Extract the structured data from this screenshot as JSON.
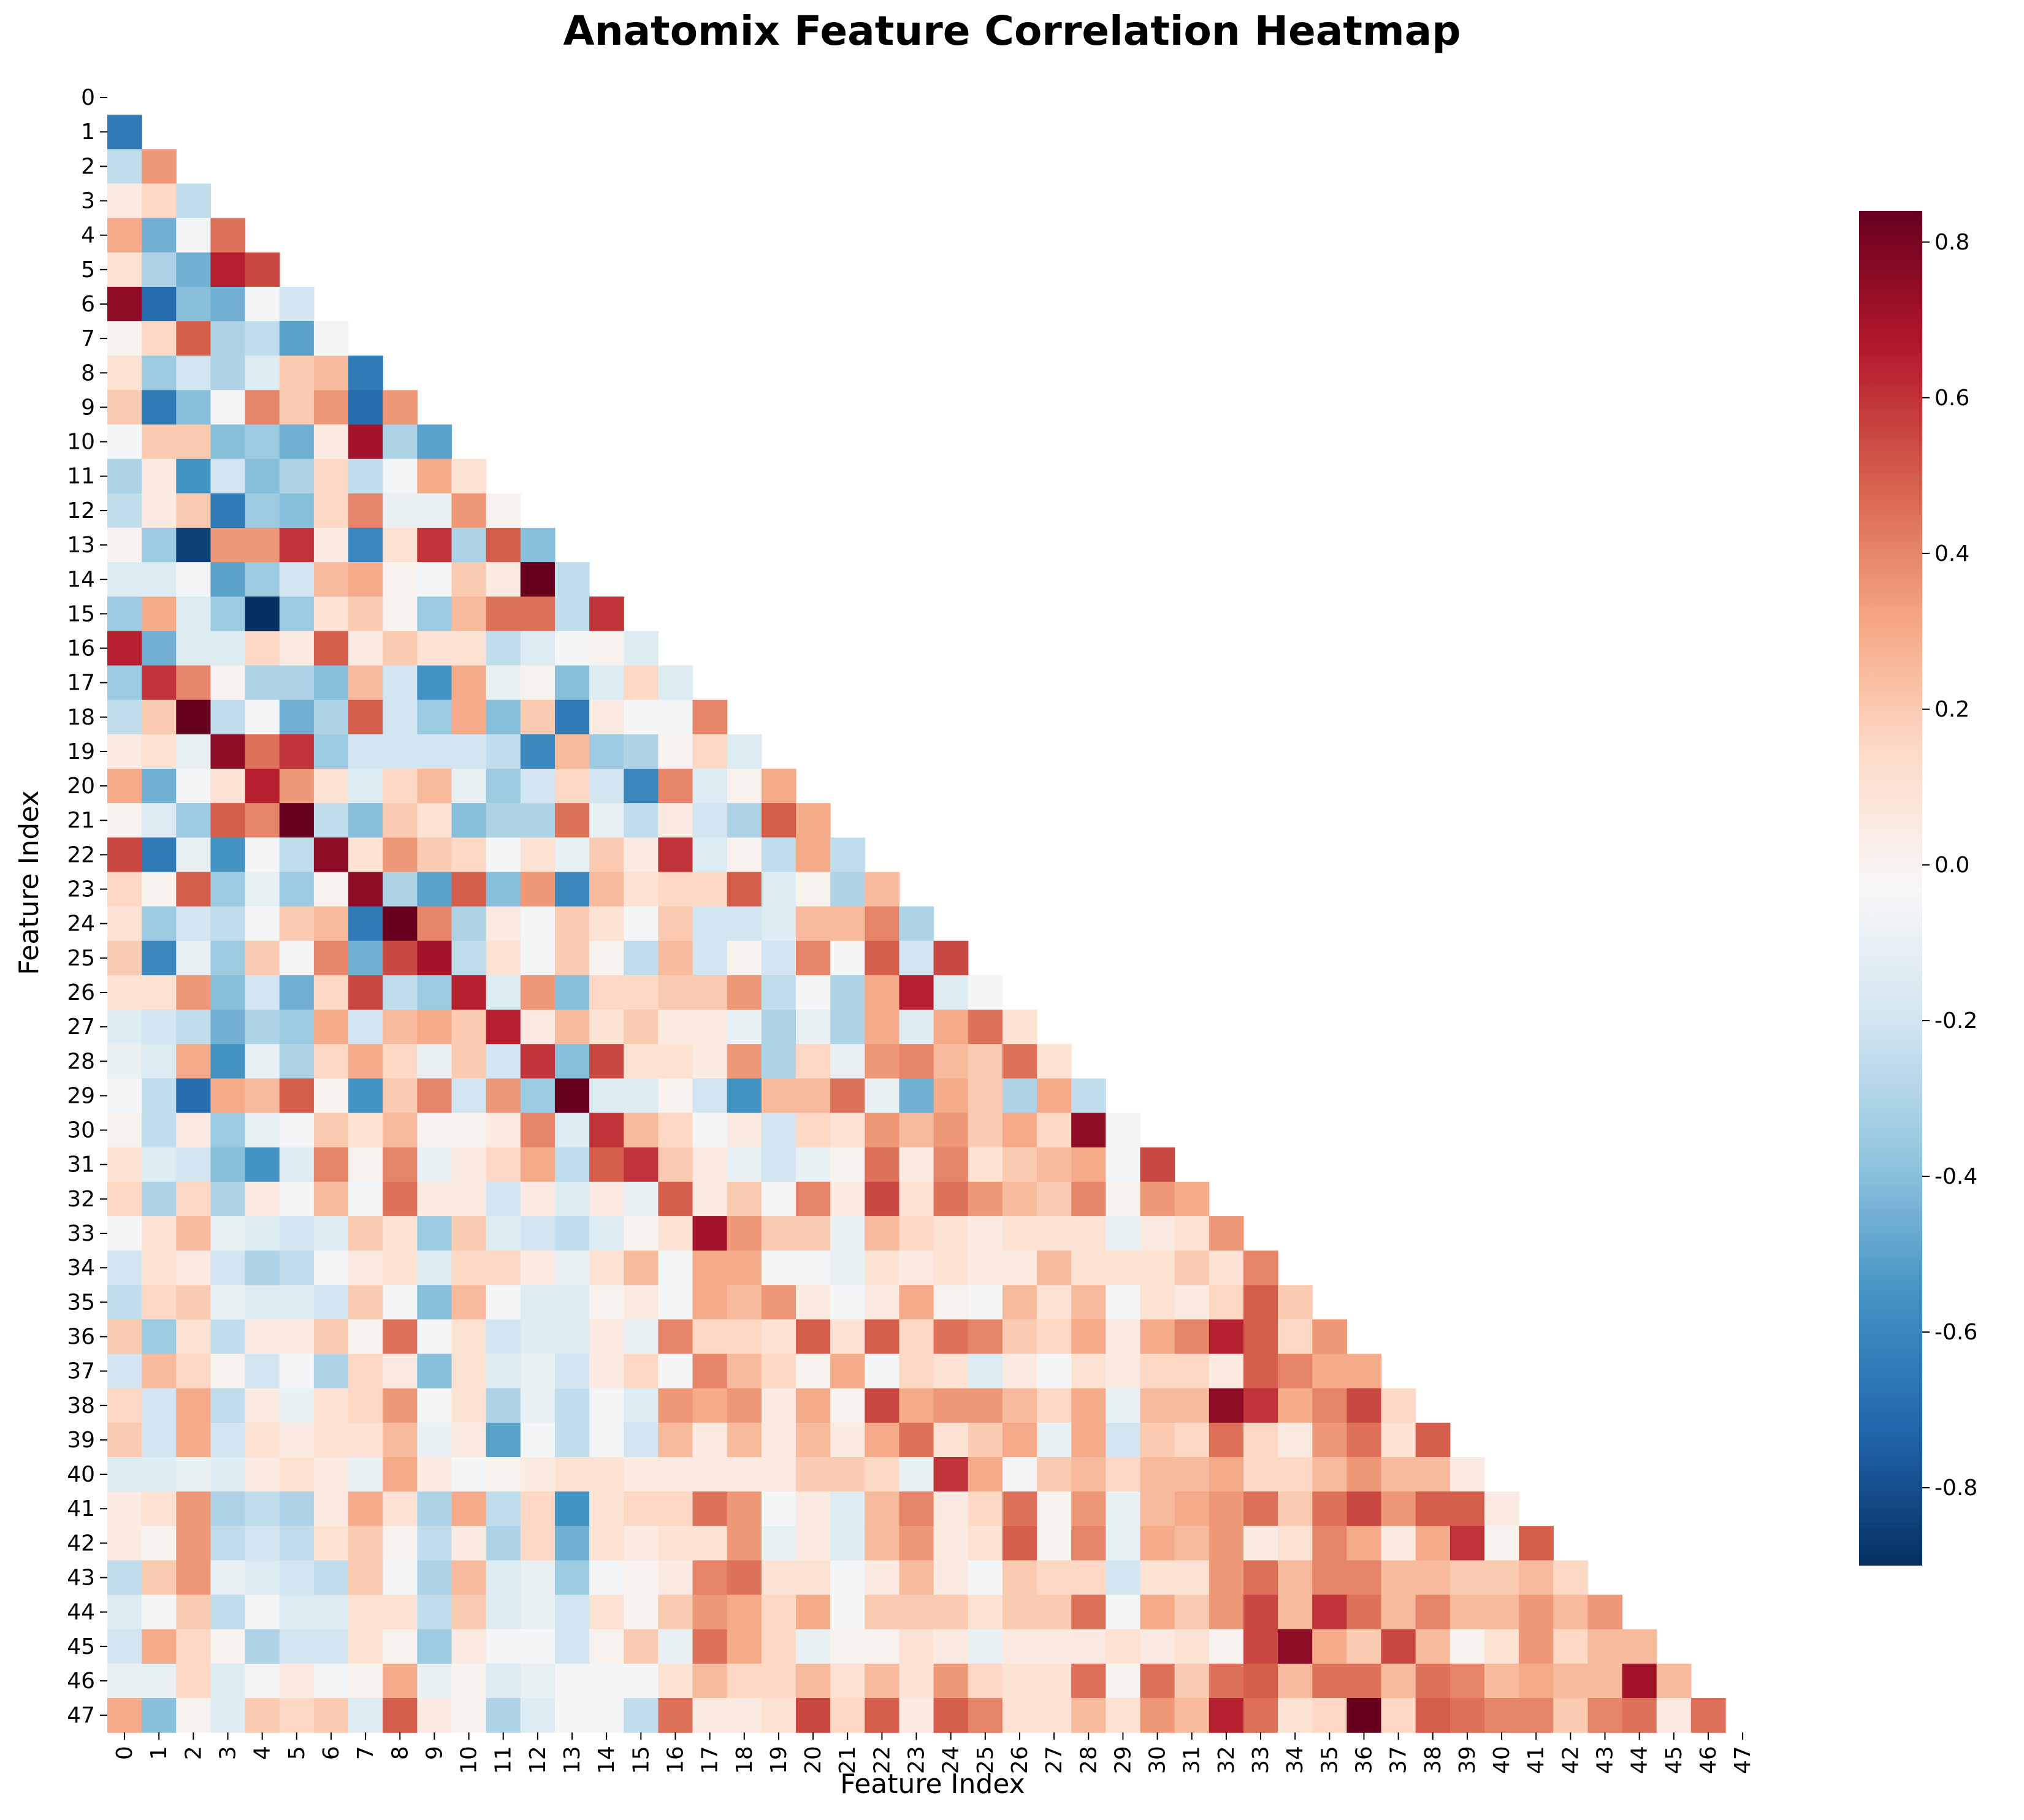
{
  "chart_data": {
    "type": "heatmap",
    "title": "Anatomix Feature Correlation Heatmap",
    "xlabel": "Feature Index",
    "ylabel": "Feature Index",
    "mask": "upper-triangle-incl-diagonal",
    "colormap": "RdBu_r",
    "vmin": -0.9,
    "vmax": 0.84,
    "colorbar_ticks": [
      "-0.8",
      "-0.6",
      "-0.4",
      "-0.2",
      "0.0",
      "0.2",
      "0.4",
      "0.6",
      "0.8"
    ],
    "colorbar_values": [
      -0.8,
      -0.6,
      -0.4,
      -0.2,
      0.0,
      0.2,
      0.4,
      0.6,
      0.8
    ],
    "x_ticks": [
      "0",
      "1",
      "2",
      "3",
      "4",
      "5",
      "6",
      "7",
      "8",
      "9",
      "10",
      "11",
      "12",
      "13",
      "14",
      "15",
      "16",
      "17",
      "18",
      "19",
      "20",
      "21",
      "22",
      "23",
      "24",
      "25",
      "26",
      "27",
      "28",
      "29",
      "30",
      "31",
      "32",
      "33",
      "34",
      "35",
      "36",
      "37",
      "38",
      "39",
      "40",
      "41",
      "42",
      "43",
      "44",
      "45",
      "46",
      "47"
    ],
    "y_ticks": [
      "0",
      "1",
      "2",
      "3",
      "4",
      "5",
      "6",
      "7",
      "8",
      "9",
      "10",
      "11",
      "12",
      "13",
      "14",
      "15",
      "16",
      "17",
      "18",
      "19",
      "20",
      "21",
      "22",
      "23",
      "24",
      "25",
      "26",
      "27",
      "28",
      "29",
      "30",
      "31",
      "32",
      "33",
      "34",
      "35",
      "36",
      "37",
      "38",
      "39",
      "40",
      "41",
      "42",
      "43",
      "44",
      "45",
      "46",
      "47"
    ],
    "rows": [
      [],
      [
        -0.65
      ],
      [
        -0.25,
        0.35
      ],
      [
        0.05,
        0.15,
        -0.25
      ],
      [
        0.3,
        -0.45,
        -0.05,
        0.45
      ],
      [
        0.1,
        -0.3,
        -0.45,
        0.65,
        0.55
      ],
      [
        0.75,
        -0.7,
        -0.4,
        -0.45,
        -0.05,
        -0.2
      ],
      [
        0.0,
        0.15,
        0.5,
        -0.3,
        -0.25,
        -0.5,
        -0.05
      ],
      [
        0.1,
        -0.35,
        -0.2,
        -0.3,
        -0.15,
        0.2,
        0.25,
        -0.65
      ],
      [
        0.2,
        -0.65,
        -0.4,
        -0.05,
        0.4,
        0.2,
        0.35,
        -0.7,
        0.35
      ],
      [
        -0.05,
        0.2,
        0.2,
        -0.4,
        -0.35,
        -0.45,
        0.05,
        0.7,
        -0.3,
        -0.5
      ],
      [
        -0.3,
        0.05,
        -0.55,
        -0.2,
        -0.4,
        -0.3,
        0.15,
        -0.25,
        -0.05,
        0.3,
        0.1
      ],
      [
        -0.25,
        0.05,
        0.2,
        -0.65,
        -0.35,
        -0.4,
        0.15,
        0.4,
        -0.1,
        -0.1,
        0.35,
        0.0
      ],
      [
        0.0,
        -0.35,
        -0.85,
        0.35,
        0.35,
        0.6,
        0.05,
        -0.6,
        0.1,
        0.6,
        -0.3,
        0.5,
        -0.4
      ],
      [
        -0.15,
        -0.15,
        -0.05,
        -0.5,
        -0.35,
        -0.2,
        0.25,
        0.3,
        0.0,
        -0.05,
        0.2,
        0.05,
        0.85,
        -0.25
      ],
      [
        -0.35,
        0.3,
        -0.15,
        -0.35,
        -0.9,
        -0.35,
        0.1,
        0.2,
        0.0,
        -0.35,
        0.25,
        0.45,
        0.45,
        -0.25,
        0.6
      ],
      [
        0.65,
        -0.45,
        -0.15,
        -0.15,
        0.15,
        0.05,
        0.5,
        0.05,
        0.2,
        0.1,
        0.1,
        -0.25,
        -0.15,
        -0.05,
        0.0,
        -0.15
      ],
      [
        -0.35,
        0.6,
        0.4,
        0.0,
        -0.3,
        -0.3,
        -0.4,
        0.25,
        -0.2,
        -0.55,
        0.3,
        -0.1,
        0.0,
        -0.4,
        -0.15,
        0.15,
        -0.15
      ],
      [
        -0.25,
        0.2,
        0.84,
        -0.25,
        -0.05,
        -0.45,
        -0.3,
        0.5,
        -0.2,
        -0.35,
        0.3,
        -0.4,
        0.2,
        -0.65,
        0.05,
        -0.05,
        -0.05,
        0.4
      ],
      [
        0.05,
        0.1,
        -0.1,
        0.75,
        0.45,
        0.6,
        -0.35,
        -0.2,
        -0.2,
        -0.2,
        -0.2,
        -0.25,
        -0.6,
        0.25,
        -0.35,
        -0.3,
        0.0,
        0.15,
        -0.15
      ],
      [
        0.3,
        -0.45,
        -0.05,
        0.1,
        0.65,
        0.35,
        0.1,
        -0.15,
        0.15,
        0.25,
        -0.1,
        -0.35,
        -0.2,
        0.15,
        -0.2,
        -0.6,
        0.4,
        -0.15,
        0.0,
        0.3
      ],
      [
        0.0,
        -0.15,
        -0.35,
        0.5,
        0.4,
        0.84,
        -0.25,
        -0.4,
        0.2,
        0.1,
        -0.4,
        -0.3,
        -0.3,
        0.45,
        -0.1,
        -0.25,
        0.05,
        -0.2,
        -0.3,
        0.5,
        0.3
      ],
      [
        0.55,
        -0.65,
        -0.1,
        -0.55,
        -0.05,
        -0.25,
        0.75,
        0.1,
        0.35,
        0.2,
        0.15,
        -0.05,
        0.1,
        -0.1,
        0.2,
        0.05,
        0.6,
        -0.15,
        0.0,
        -0.25,
        0.3,
        -0.25
      ],
      [
        0.15,
        0.0,
        0.5,
        -0.35,
        -0.1,
        -0.35,
        0.0,
        0.75,
        -0.3,
        -0.5,
        0.5,
        -0.4,
        0.35,
        -0.6,
        0.25,
        0.1,
        0.15,
        0.15,
        0.5,
        -0.15,
        0.0,
        -0.3,
        0.25
      ],
      [
        0.1,
        -0.35,
        -0.2,
        -0.25,
        -0.05,
        0.2,
        0.25,
        -0.65,
        0.84,
        0.4,
        -0.3,
        0.05,
        -0.05,
        0.2,
        0.1,
        -0.05,
        0.2,
        -0.2,
        -0.2,
        -0.15,
        0.25,
        0.25,
        0.4,
        -0.3
      ],
      [
        0.2,
        -0.6,
        -0.1,
        -0.35,
        0.2,
        -0.05,
        0.4,
        -0.45,
        0.55,
        0.7,
        -0.25,
        0.1,
        -0.05,
        0.2,
        0.0,
        -0.25,
        0.25,
        -0.2,
        0.0,
        -0.2,
        0.4,
        -0.05,
        0.5,
        -0.2,
        0.55
      ],
      [
        0.1,
        0.1,
        0.35,
        -0.4,
        -0.2,
        -0.45,
        0.15,
        0.55,
        -0.25,
        -0.35,
        0.65,
        -0.15,
        0.35,
        -0.4,
        0.15,
        0.15,
        0.2,
        0.2,
        0.35,
        -0.25,
        -0.05,
        -0.3,
        0.3,
        0.65,
        -0.15,
        -0.05
      ],
      [
        -0.15,
        -0.2,
        -0.25,
        -0.45,
        -0.3,
        -0.35,
        0.3,
        -0.2,
        0.25,
        0.3,
        0.2,
        0.65,
        0.05,
        0.25,
        0.1,
        0.2,
        0.05,
        0.05,
        -0.1,
        -0.3,
        -0.1,
        -0.3,
        0.3,
        -0.15,
        0.3,
        0.45,
        0.1
      ],
      [
        -0.1,
        -0.15,
        0.3,
        -0.55,
        -0.1,
        -0.3,
        0.15,
        0.3,
        0.15,
        -0.1,
        0.2,
        -0.2,
        0.6,
        -0.4,
        0.55,
        0.1,
        0.1,
        0.05,
        0.35,
        -0.3,
        0.15,
        -0.1,
        0.35,
        0.4,
        0.25,
        0.2,
        0.45,
        0.1
      ],
      [
        -0.05,
        -0.25,
        -0.7,
        0.3,
        0.25,
        0.5,
        0.0,
        -0.55,
        0.2,
        0.4,
        -0.2,
        0.35,
        -0.35,
        0.84,
        -0.15,
        -0.15,
        0.0,
        -0.2,
        -0.55,
        0.25,
        0.25,
        0.45,
        -0.1,
        -0.45,
        0.3,
        0.2,
        -0.3,
        0.3,
        -0.25
      ],
      [
        0.0,
        -0.25,
        0.05,
        -0.35,
        -0.1,
        -0.05,
        0.2,
        0.1,
        0.25,
        0.0,
        0.0,
        0.05,
        0.4,
        -0.15,
        0.6,
        0.25,
        0.15,
        -0.05,
        0.05,
        -0.2,
        0.15,
        0.1,
        0.35,
        0.25,
        0.35,
        0.2,
        0.3,
        0.15,
        0.75,
        -0.05
      ],
      [
        0.1,
        -0.15,
        -0.2,
        -0.4,
        -0.55,
        -0.15,
        0.4,
        0.0,
        0.4,
        -0.1,
        0.05,
        0.15,
        0.3,
        -0.25,
        0.5,
        0.6,
        0.2,
        0.05,
        -0.1,
        -0.2,
        -0.1,
        0.0,
        0.45,
        0.05,
        0.4,
        0.1,
        0.2,
        0.25,
        0.3,
        -0.05,
        0.55
      ],
      [
        0.15,
        -0.3,
        0.15,
        -0.3,
        0.05,
        -0.05,
        0.25,
        -0.05,
        0.45,
        0.05,
        0.05,
        -0.2,
        0.05,
        -0.15,
        0.05,
        -0.1,
        0.5,
        0.05,
        0.2,
        -0.05,
        0.4,
        0.05,
        0.55,
        0.1,
        0.45,
        0.35,
        0.25,
        0.2,
        0.4,
        0.0,
        0.35,
        0.3
      ],
      [
        -0.05,
        0.1,
        0.25,
        -0.1,
        -0.15,
        -0.2,
        -0.15,
        0.2,
        0.1,
        -0.35,
        0.2,
        -0.15,
        -0.2,
        -0.25,
        -0.15,
        0.0,
        0.1,
        0.7,
        0.35,
        0.2,
        0.2,
        -0.1,
        0.25,
        0.15,
        0.1,
        0.05,
        0.1,
        0.1,
        0.1,
        -0.1,
        0.05,
        0.1,
        0.35
      ],
      [
        -0.2,
        0.1,
        0.05,
        -0.2,
        -0.3,
        -0.25,
        -0.05,
        0.05,
        0.1,
        -0.15,
        0.15,
        0.15,
        0.05,
        -0.1,
        0.1,
        0.25,
        -0.05,
        0.3,
        0.3,
        -0.05,
        -0.05,
        -0.1,
        0.1,
        0.05,
        0.1,
        0.05,
        0.05,
        0.25,
        0.1,
        0.1,
        0.1,
        0.2,
        0.1,
        0.4
      ],
      [
        -0.25,
        0.15,
        0.2,
        -0.1,
        -0.15,
        -0.15,
        -0.2,
        0.2,
        -0.05,
        -0.4,
        0.25,
        -0.05,
        -0.15,
        -0.15,
        0.0,
        0.05,
        -0.05,
        0.3,
        0.25,
        0.35,
        0.05,
        -0.05,
        0.05,
        0.3,
        0.0,
        -0.05,
        0.25,
        0.1,
        0.25,
        -0.05,
        0.1,
        0.05,
        0.15,
        0.5,
        0.2
      ],
      [
        0.2,
        -0.35,
        0.1,
        -0.25,
        0.05,
        0.05,
        0.2,
        0.0,
        0.45,
        -0.05,
        0.1,
        -0.2,
        -0.15,
        -0.15,
        0.05,
        -0.1,
        0.4,
        0.15,
        0.15,
        0.1,
        0.5,
        0.1,
        0.5,
        0.15,
        0.45,
        0.4,
        0.2,
        0.15,
        0.3,
        0.05,
        0.3,
        0.4,
        0.65,
        0.5,
        0.15,
        0.35
      ],
      [
        -0.2,
        0.25,
        0.15,
        0.0,
        -0.2,
        -0.05,
        -0.3,
        0.15,
        0.05,
        -0.4,
        0.1,
        -0.15,
        -0.1,
        -0.2,
        0.05,
        0.15,
        -0.05,
        0.4,
        0.25,
        0.15,
        0.0,
        0.3,
        -0.05,
        0.15,
        0.1,
        -0.15,
        0.05,
        -0.05,
        0.1,
        0.05,
        0.15,
        0.15,
        0.05,
        0.5,
        0.4,
        0.3,
        0.3
      ],
      [
        0.15,
        -0.2,
        0.3,
        -0.25,
        0.05,
        -0.1,
        0.1,
        0.15,
        0.35,
        -0.05,
        0.1,
        -0.3,
        -0.1,
        -0.25,
        -0.05,
        -0.15,
        0.35,
        0.3,
        0.35,
        0.05,
        0.3,
        0.0,
        0.55,
        0.3,
        0.35,
        0.35,
        0.25,
        0.15,
        0.3,
        -0.1,
        0.25,
        0.25,
        0.75,
        0.6,
        0.3,
        0.4,
        0.55,
        0.15
      ],
      [
        0.2,
        -0.2,
        0.3,
        -0.2,
        0.1,
        0.05,
        0.1,
        0.1,
        0.25,
        -0.1,
        0.05,
        -0.5,
        -0.05,
        -0.25,
        -0.05,
        -0.2,
        0.25,
        0.05,
        0.25,
        0.05,
        0.25,
        0.05,
        0.3,
        0.45,
        0.1,
        0.2,
        0.3,
        -0.1,
        0.3,
        -0.2,
        0.2,
        0.15,
        0.45,
        0.15,
        0.05,
        0.35,
        0.45,
        0.1,
        0.5
      ],
      [
        -0.15,
        -0.15,
        -0.1,
        -0.15,
        0.05,
        0.1,
        0.05,
        -0.1,
        0.3,
        0.05,
        -0.05,
        0.0,
        0.05,
        0.1,
        0.1,
        0.05,
        0.05,
        0.05,
        0.05,
        0.05,
        0.2,
        0.2,
        0.15,
        -0.1,
        0.6,
        0.3,
        -0.05,
        0.2,
        0.25,
        0.15,
        0.25,
        0.25,
        0.3,
        0.15,
        0.15,
        0.25,
        0.35,
        0.25,
        0.25,
        0.05
      ],
      [
        0.05,
        0.1,
        0.35,
        -0.3,
        -0.25,
        -0.3,
        0.05,
        0.3,
        0.1,
        -0.3,
        0.3,
        -0.25,
        0.15,
        -0.55,
        0.1,
        0.15,
        0.15,
        0.45,
        0.35,
        -0.05,
        0.05,
        -0.15,
        0.25,
        0.4,
        0.05,
        0.15,
        0.45,
        0.0,
        0.35,
        -0.1,
        0.25,
        0.3,
        0.35,
        0.45,
        0.2,
        0.45,
        0.55,
        0.35,
        0.5,
        0.5,
        0.05
      ],
      [
        0.05,
        0.0,
        0.35,
        -0.25,
        -0.2,
        -0.25,
        0.1,
        0.2,
        0.0,
        -0.25,
        0.05,
        -0.3,
        0.15,
        -0.45,
        0.1,
        0.05,
        0.1,
        0.1,
        0.35,
        -0.1,
        0.05,
        -0.15,
        0.25,
        0.35,
        0.05,
        0.1,
        0.5,
        0.0,
        0.4,
        -0.1,
        0.3,
        0.25,
        0.35,
        0.05,
        0.1,
        0.4,
        0.3,
        0.05,
        0.3,
        0.6,
        0.0,
        0.5
      ],
      [
        -0.25,
        0.2,
        0.35,
        -0.1,
        -0.15,
        -0.2,
        -0.25,
        0.2,
        -0.05,
        -0.3,
        0.25,
        -0.15,
        -0.1,
        -0.35,
        -0.05,
        0.0,
        0.05,
        0.4,
        0.45,
        0.1,
        0.1,
        -0.05,
        0.05,
        0.25,
        0.05,
        -0.05,
        0.2,
        0.15,
        0.15,
        -0.2,
        0.1,
        0.1,
        0.35,
        0.45,
        0.25,
        0.4,
        0.4,
        0.25,
        0.25,
        0.2,
        0.2,
        0.25,
        0.15
      ],
      [
        -0.15,
        -0.05,
        0.2,
        -0.25,
        -0.05,
        -0.15,
        -0.15,
        0.1,
        0.1,
        -0.25,
        0.2,
        -0.15,
        -0.1,
        -0.2,
        0.1,
        0.0,
        0.2,
        0.35,
        0.3,
        0.15,
        0.3,
        -0.05,
        0.2,
        0.2,
        0.2,
        0.1,
        0.2,
        0.2,
        0.45,
        -0.05,
        0.3,
        0.2,
        0.35,
        0.55,
        0.25,
        0.6,
        0.45,
        0.25,
        0.4,
        0.25,
        0.25,
        0.35,
        0.25,
        0.35
      ],
      [
        -0.2,
        0.3,
        0.15,
        0.0,
        -0.3,
        -0.2,
        -0.2,
        0.1,
        0.0,
        -0.35,
        0.05,
        -0.05,
        -0.05,
        -0.2,
        0.0,
        0.2,
        -0.1,
        0.45,
        0.3,
        0.15,
        -0.1,
        0.0,
        0.0,
        0.1,
        0.05,
        -0.1,
        0.05,
        0.05,
        0.05,
        0.1,
        0.05,
        0.1,
        0.0,
        0.55,
        0.75,
        0.3,
        0.2,
        0.55,
        0.25,
        0.0,
        0.1,
        0.35,
        0.15,
        0.25,
        0.25
      ],
      [
        -0.1,
        -0.1,
        0.15,
        -0.15,
        -0.05,
        0.05,
        -0.05,
        0.0,
        0.3,
        -0.1,
        0.0,
        -0.15,
        -0.1,
        -0.05,
        -0.05,
        -0.05,
        0.1,
        0.25,
        0.15,
        0.15,
        0.25,
        0.1,
        0.25,
        0.1,
        0.35,
        0.15,
        0.1,
        0.1,
        0.45,
        0.0,
        0.45,
        0.2,
        0.45,
        0.5,
        0.25,
        0.45,
        0.45,
        0.25,
        0.45,
        0.4,
        0.25,
        0.3,
        0.25,
        0.25,
        0.7,
        0.25
      ],
      [
        0.3,
        -0.4,
        0.0,
        -0.15,
        0.2,
        0.15,
        0.2,
        -0.15,
        0.5,
        0.05,
        0.0,
        -0.3,
        -0.15,
        -0.05,
        -0.05,
        -0.25,
        0.45,
        0.05,
        0.05,
        0.1,
        0.55,
        0.15,
        0.5,
        0.05,
        0.5,
        0.4,
        0.1,
        0.1,
        0.25,
        0.1,
        0.35,
        0.25,
        0.65,
        0.45,
        0.1,
        0.15,
        0.84,
        0.15,
        0.5,
        0.45,
        0.4,
        0.4,
        0.2,
        0.4,
        0.45,
        0.05,
        0.45
      ]
    ]
  }
}
